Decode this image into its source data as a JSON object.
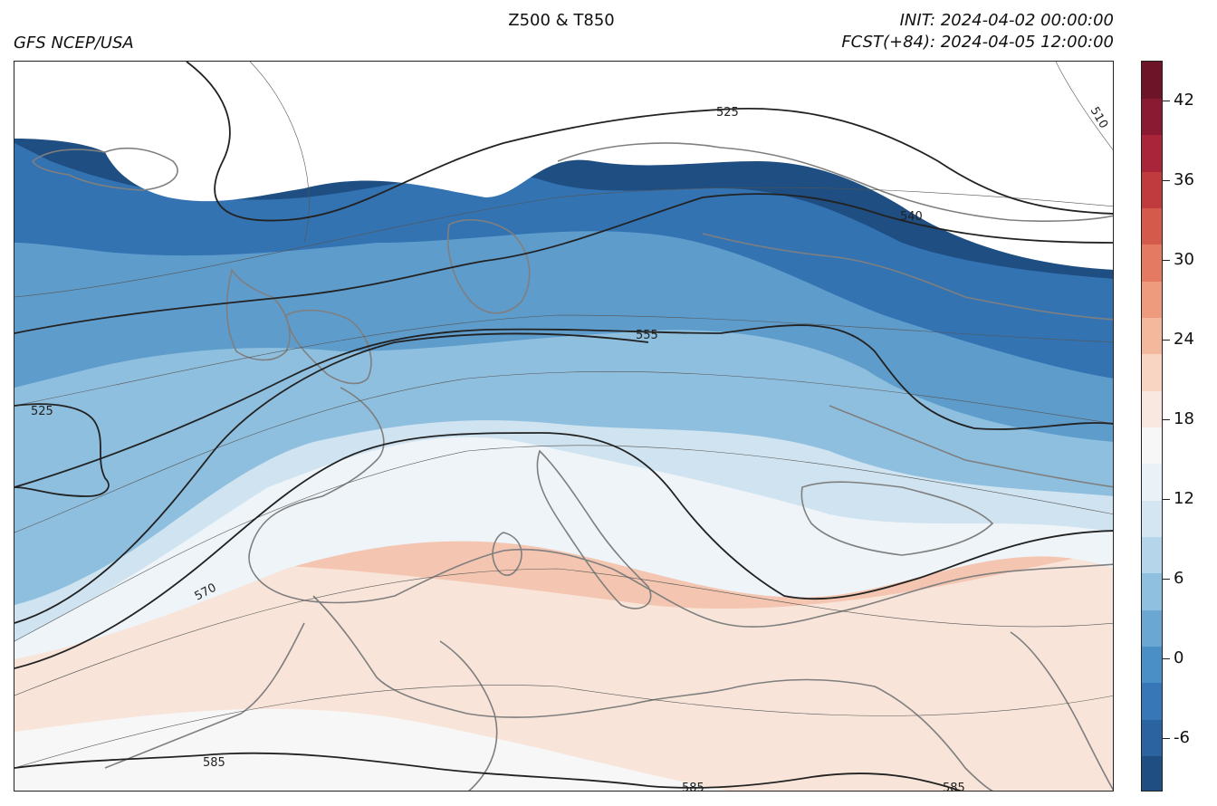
{
  "header": {
    "title": "Z500 & T850",
    "source": "GFS NCEP/USA",
    "init": "INIT: 2024-04-02 00:00:00",
    "forecast": "FCST(+84): 2024-04-05 12:00:00"
  },
  "colorbar": {
    "ticks": [
      "42",
      "36",
      "30",
      "24",
      "18",
      "12",
      "6",
      "0",
      "-6"
    ],
    "range": [
      -10,
      45
    ],
    "colors": [
      "#1f4e82",
      "#2a63a0",
      "#3777b8",
      "#4a8fc6",
      "#6aa7d3",
      "#90c0e0",
      "#b4d5ea",
      "#d3e6f2",
      "#eaf2f8",
      "#f7f7f7",
      "#f8e8e0",
      "#f8d4c2",
      "#f4b89c",
      "#ee9a7c",
      "#e47a61",
      "#d45a4c",
      "#c03b3d",
      "#a8253a",
      "#8a1a31",
      "#6e1429"
    ]
  },
  "contour_labels": [
    "525",
    "540",
    "555",
    "570",
    "525",
    "585",
    "585",
    "585",
    "510"
  ]
}
